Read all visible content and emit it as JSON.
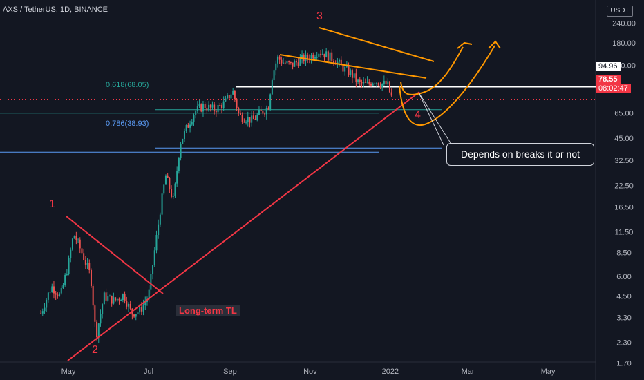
{
  "header": {
    "symbol": "AXS / TetherUS, 1D, BINANCE"
  },
  "y_axis_unit": "USDT",
  "chart_data": {
    "type": "candlestick",
    "symbol": "AXS / TetherUS",
    "timeframe": "1D",
    "exchange": "BINANCE",
    "y_scale": "log",
    "ylim": [
      1.3,
      240
    ],
    "y_ticks": [
      "240.00",
      "180.00",
      "130.00",
      "94.96",
      "65.00",
      "45.00",
      "32.50",
      "22.50",
      "16.50",
      "11.50",
      "8.50",
      "6.00",
      "4.50",
      "3.30",
      "2.30",
      "1.70"
    ],
    "x_ticks": [
      "May",
      "Jul",
      "Sep",
      "Nov",
      "2022",
      "Mar",
      "May"
    ],
    "price_path": [
      [
        "Apr 10",
        3.5
      ],
      [
        "Apr 18",
        5.2
      ],
      [
        "Apr 25",
        4.5
      ],
      [
        "May 1",
        7.2
      ],
      [
        "May 5",
        11.2
      ],
      [
        "May 12",
        8.2
      ],
      [
        "May 18",
        6.0
      ],
      [
        "May 22",
        2.5
      ],
      [
        "May 28",
        4.5
      ],
      [
        "Jun 5",
        4.2
      ],
      [
        "Jun 12",
        4.6
      ],
      [
        "Jun 18",
        3.5
      ],
      [
        "Jun 24",
        3.6
      ],
      [
        "Jul 1",
        4.5
      ],
      [
        "Jul 5",
        8.0
      ],
      [
        "Jul 10",
        16.0
      ],
      [
        "Jul 14",
        26.0
      ],
      [
        "Jul 20",
        18.0
      ],
      [
        "Jul 25",
        42.0
      ],
      [
        "Jul 30",
        52.0
      ],
      [
        "Aug 5",
        66.0
      ],
      [
        "Aug 12",
        72.0
      ],
      [
        "Aug 20",
        68.0
      ],
      [
        "Aug 28",
        75.0
      ],
      [
        "Sep 3",
        90.0
      ],
      [
        "Sep 8",
        62.0
      ],
      [
        "Sep 14",
        60.0
      ],
      [
        "Sep 18",
        58.0
      ],
      [
        "Sep 24",
        65.0
      ],
      [
        "Sep 30",
        70.0
      ],
      [
        "Oct 3",
        110.0
      ],
      [
        "Oct 7",
        145.0
      ],
      [
        "Oct 12",
        135.0
      ],
      [
        "Oct 18",
        130.0
      ],
      [
        "Oct 24",
        140.0
      ],
      [
        "Oct 30",
        145.0
      ],
      [
        "Nov 5",
        155.0
      ],
      [
        "Nov 8",
        160.0
      ],
      [
        "Nov 14",
        150.0
      ],
      [
        "Nov 20",
        140.0
      ],
      [
        "Nov 26",
        125.0
      ],
      [
        "Dec 2",
        115.0
      ],
      [
        "Dec 8",
        100.0
      ],
      [
        "Dec 14",
        98.0
      ],
      [
        "Dec 20",
        105.0
      ],
      [
        "Dec 24",
        100.0
      ],
      [
        "Dec 30",
        98.0
      ],
      [
        "Jan 1",
        85.0
      ],
      [
        "Jan 3",
        78.55
      ]
    ],
    "levels": [
      {
        "label": "0.618(68.05)",
        "value": 68.05
      },
      {
        "label": "0.786(38.93)",
        "value": 38.93
      },
      {
        "label": "94.96",
        "value": 94.96
      }
    ],
    "current_price": {
      "value": "78.55",
      "countdown": "08:02:47"
    },
    "annotations": {
      "waves": [
        "1",
        "2",
        "3",
        "4"
      ],
      "trendline_label": "Long-term TL",
      "callout": "Depends on breaks it or not"
    },
    "colors": {
      "background": "#131722",
      "candle_up": "#26a69a",
      "candle_down": "#ef5350",
      "trendline": "#f23645",
      "channel": "#ff9800",
      "fib_618": "#26a69a",
      "fib_786": "#5b9cf6",
      "resistance": "#ffffff"
    }
  }
}
